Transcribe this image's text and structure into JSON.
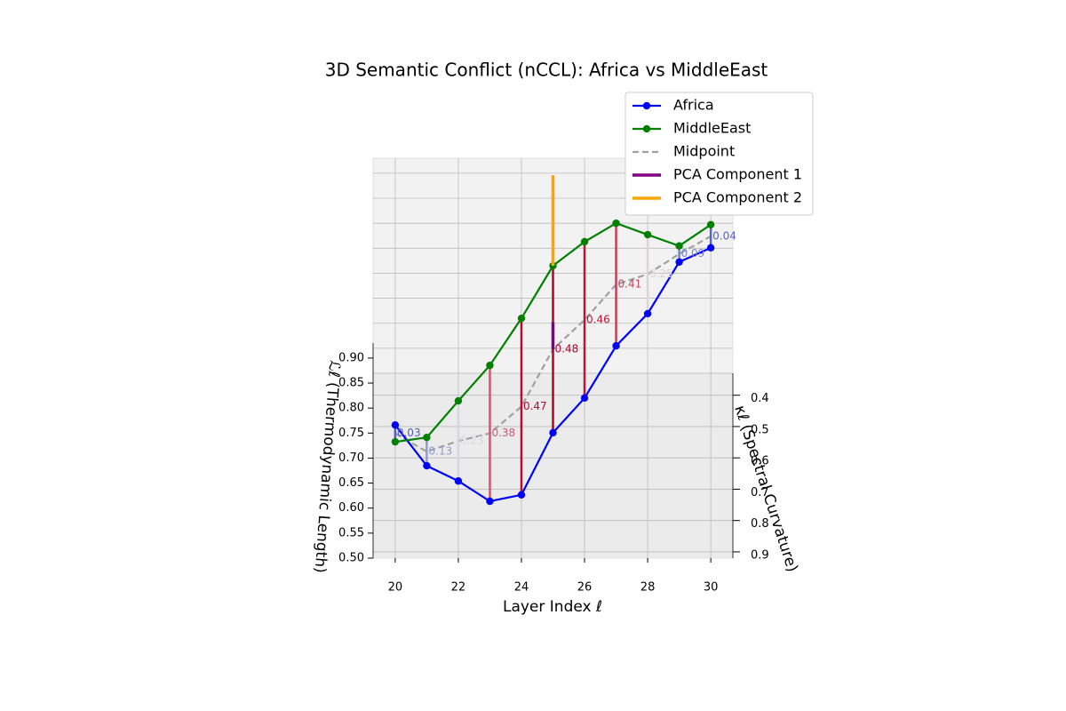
{
  "chart_data": {
    "type": "line3d",
    "title": "3D Semantic Conflict (nCCL): Africa vs MiddleEast",
    "xlabel": "Layer Index ℓ",
    "ylabel": "κℓ (Spectral Curvature)",
    "zlabel": "ℒℓ (Thermodynamic Length)",
    "x": [
      20,
      21,
      22,
      23,
      24,
      25,
      26,
      27,
      28,
      29,
      30
    ],
    "xlim": [
      19.3,
      30.7
    ],
    "xticks": [
      20,
      22,
      24,
      26,
      28,
      30
    ],
    "ylim": [
      0.33,
      0.92
    ],
    "yticks": [
      0.4,
      0.5,
      0.6,
      0.7,
      0.8,
      0.9
    ],
    "zlim": [
      0.5,
      0.93
    ],
    "zticks": [
      {
        "value": 0.5,
        "label": "0.50"
      },
      {
        "value": 0.55,
        "label": "0.55"
      },
      {
        "value": 0.6,
        "label": "0.60"
      },
      {
        "value": 0.65,
        "label": "0.65"
      },
      {
        "value": 0.7,
        "label": "0.70"
      },
      {
        "value": 0.75,
        "label": "0.75"
      },
      {
        "value": 0.8,
        "label": "0.80"
      },
      {
        "value": 0.85,
        "label": "0.85"
      },
      {
        "value": 0.9,
        "label": "0.90"
      }
    ],
    "grid": true,
    "series": [
      {
        "name": "Africa",
        "color": "#0000ff",
        "marker": "o",
        "dashed": false,
        "kappa": [
          0.8,
          0.82,
          0.8,
          0.78,
          0.75,
          0.7,
          0.65,
          0.6,
          0.55,
          0.5,
          0.45
        ],
        "length": [
          0.691,
          0.622,
          0.579,
          0.526,
          0.52,
          0.613,
          0.651,
          0.724,
          0.757,
          0.829,
          0.826
        ]
      },
      {
        "name": "MiddleEast",
        "color": "#008000",
        "marker": "o",
        "dashed": false,
        "kappa": [
          0.75,
          0.72,
          0.68,
          0.64,
          0.6,
          0.56,
          0.52,
          0.48,
          0.44,
          0.42,
          0.4
        ],
        "length": [
          0.626,
          0.616,
          0.664,
          0.71,
          0.779,
          0.859,
          0.882,
          0.894,
          0.846,
          0.811,
          0.841
        ]
      },
      {
        "name": "Midpoint",
        "color": "#a0a0a0",
        "marker": null,
        "dashed": true,
        "kappa": [
          0.775,
          0.77,
          0.74,
          0.71,
          0.675,
          0.63,
          0.585,
          0.54,
          0.495,
          0.46,
          0.425
        ],
        "length": [
          0.6585,
          0.619,
          0.6215,
          0.618,
          0.6495,
          0.736,
          0.7665,
          0.809,
          0.8015,
          0.82,
          0.8335
        ]
      }
    ],
    "conflict": {
      "values": [
        0.03,
        0.13,
        0.23,
        0.38,
        0.47,
        0.48,
        0.46,
        0.41,
        0.25,
        0.09,
        0.04
      ],
      "cmap": [
        "#3b4cc0",
        "#dddddd",
        "#b40426"
      ],
      "clim": [
        0,
        0.48
      ]
    },
    "pca": [
      {
        "name": "PCA Component 1",
        "color": "#800080",
        "start": [
          25,
          0.63,
          0.736
        ],
        "end": [
          25,
          0.63,
          0.79
        ]
      },
      {
        "name": "PCA Component 2",
        "color": "#ffa500",
        "start": [
          25,
          0.56,
          0.859
        ],
        "end": [
          25,
          0.56,
          1.04
        ]
      }
    ],
    "legend": "upper right"
  }
}
